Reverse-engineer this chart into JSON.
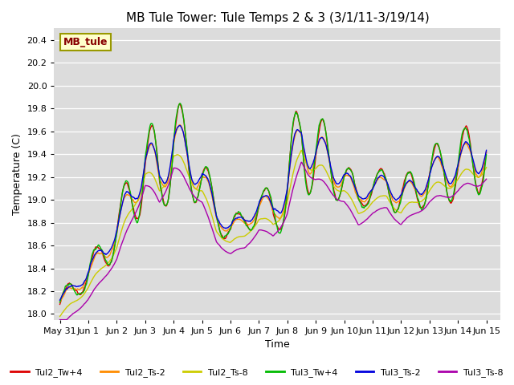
{
  "title": "MB Tule Tower: Tule Temps 2 & 3 (3/1/11-3/19/14)",
  "xlabel": "Time",
  "ylabel": "Temperature (C)",
  "xlim": [
    -0.2,
    15.5
  ],
  "ylim": [
    17.95,
    20.5
  ],
  "yticks": [
    18.0,
    18.2,
    18.4,
    18.6,
    18.8,
    19.0,
    19.2,
    19.4,
    19.6,
    19.8,
    20.0,
    20.2,
    20.4
  ],
  "xtick_labels": [
    "May 31",
    "Jun 1",
    "Jun 2",
    "Jun 3",
    "Jun 4",
    "Jun 5",
    "Jun 6",
    "Jun 7",
    "Jun 8",
    "Jun 9",
    "Jun 10",
    "Jun 11",
    "Jun 12",
    "Jun 13",
    "Jun 14",
    "Jun 15"
  ],
  "xtick_positions": [
    0,
    1,
    2,
    3,
    4,
    5,
    6,
    7,
    8,
    9,
    10,
    11,
    12,
    13,
    14,
    15
  ],
  "bg_color": "#dcdcdc",
  "fig_color": "#ffffff",
  "series": {
    "Tul2_Tw+4": {
      "color": "#dd0000",
      "lw": 1.0
    },
    "Tul2_Ts-2": {
      "color": "#ff8c00",
      "lw": 1.0
    },
    "Tul2_Ts-8": {
      "color": "#cccc00",
      "lw": 1.0
    },
    "Tul3_Tw+4": {
      "color": "#00bb00",
      "lw": 1.0
    },
    "Tul3_Ts-2": {
      "color": "#0000dd",
      "lw": 1.0
    },
    "Tul3_Ts-8": {
      "color": "#aa00aa",
      "lw": 1.0
    }
  },
  "legend_box": {
    "label": "MB_tule",
    "facecolor": "#ffffcc",
    "edgecolor": "#999900",
    "textcolor": "#880000"
  },
  "title_fontsize": 11,
  "axis_label_fontsize": 9,
  "tick_fontsize": 8
}
